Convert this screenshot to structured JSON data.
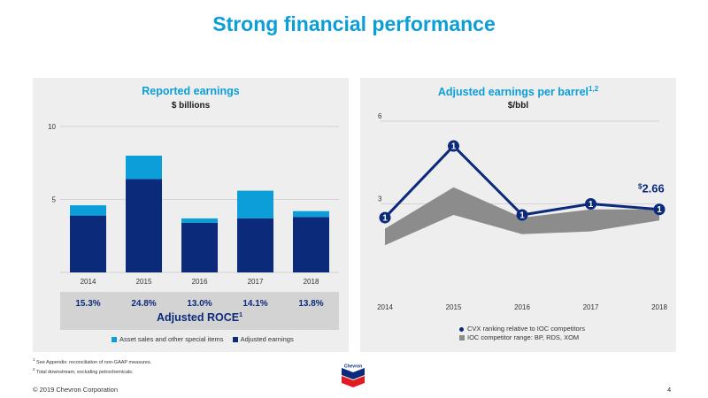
{
  "page": {
    "title": "Strong financial performance",
    "copyright": "© 2019 Chevron Corporation",
    "page_number": "4",
    "footnotes": [
      {
        "mark": "1",
        "text": "See Appendix: reconciliation of non-GAAP measures."
      },
      {
        "mark": "2",
        "text": "Total downstream, excluding petrochemicals."
      }
    ],
    "logo_text": "Chevron"
  },
  "colors": {
    "title": "#0b9ed9",
    "dark_navy": "#0b2a7a",
    "light_blue": "#0b9ed9",
    "gray_band": "#8c8c8c",
    "panel_bg": "#eeeeee"
  },
  "chart_data": [
    {
      "type": "bar",
      "stacked": true,
      "title": "Reported earnings",
      "subtitle": "$ billions",
      "categories": [
        "2014",
        "2015",
        "2016",
        "2017",
        "2018"
      ],
      "series": [
        {
          "name": "Adjusted earnings",
          "color": "#0b2a7a",
          "values": [
            3.9,
            6.4,
            3.4,
            3.7,
            3.8
          ]
        },
        {
          "name": "Asset sales and other special items",
          "color": "#0b9ed9",
          "values": [
            0.7,
            1.6,
            0.3,
            1.9,
            0.4
          ]
        }
      ],
      "ylim": [
        0,
        10
      ],
      "yticks": [
        5,
        10
      ],
      "grid": true,
      "legend": "bottom",
      "roce": {
        "label": "Adjusted ROCE",
        "label_sup": "1",
        "values": [
          "15.3%",
          "24.8%",
          "13.0%",
          "14.1%",
          "13.8%"
        ]
      }
    },
    {
      "type": "line",
      "title": "Adjusted earnings per barrel",
      "title_sup": "1,2",
      "subtitle": "$/bbl",
      "x": [
        "2014",
        "2015",
        "2016",
        "2017",
        "2018"
      ],
      "ylim": [
        0,
        6
      ],
      "yticks": [
        3,
        6
      ],
      "grid": true,
      "band": {
        "name": "IOC competitor range: BP, RDS, XOM",
        "low": [
          1.5,
          2.6,
          1.9,
          2.0,
          2.4
        ],
        "high": [
          2.1,
          3.6,
          2.5,
          2.8,
          2.8
        ]
      },
      "series": [
        {
          "name": "CVX ranking relative to IOC competitors",
          "values": [
            2.5,
            5.1,
            2.6,
            3.0,
            2.8
          ],
          "rank_labels": [
            "1",
            "1",
            "1",
            "1",
            "1"
          ]
        }
      ],
      "callout": {
        "prefix": "$",
        "value": "2.66"
      },
      "legend": "bottom"
    }
  ]
}
